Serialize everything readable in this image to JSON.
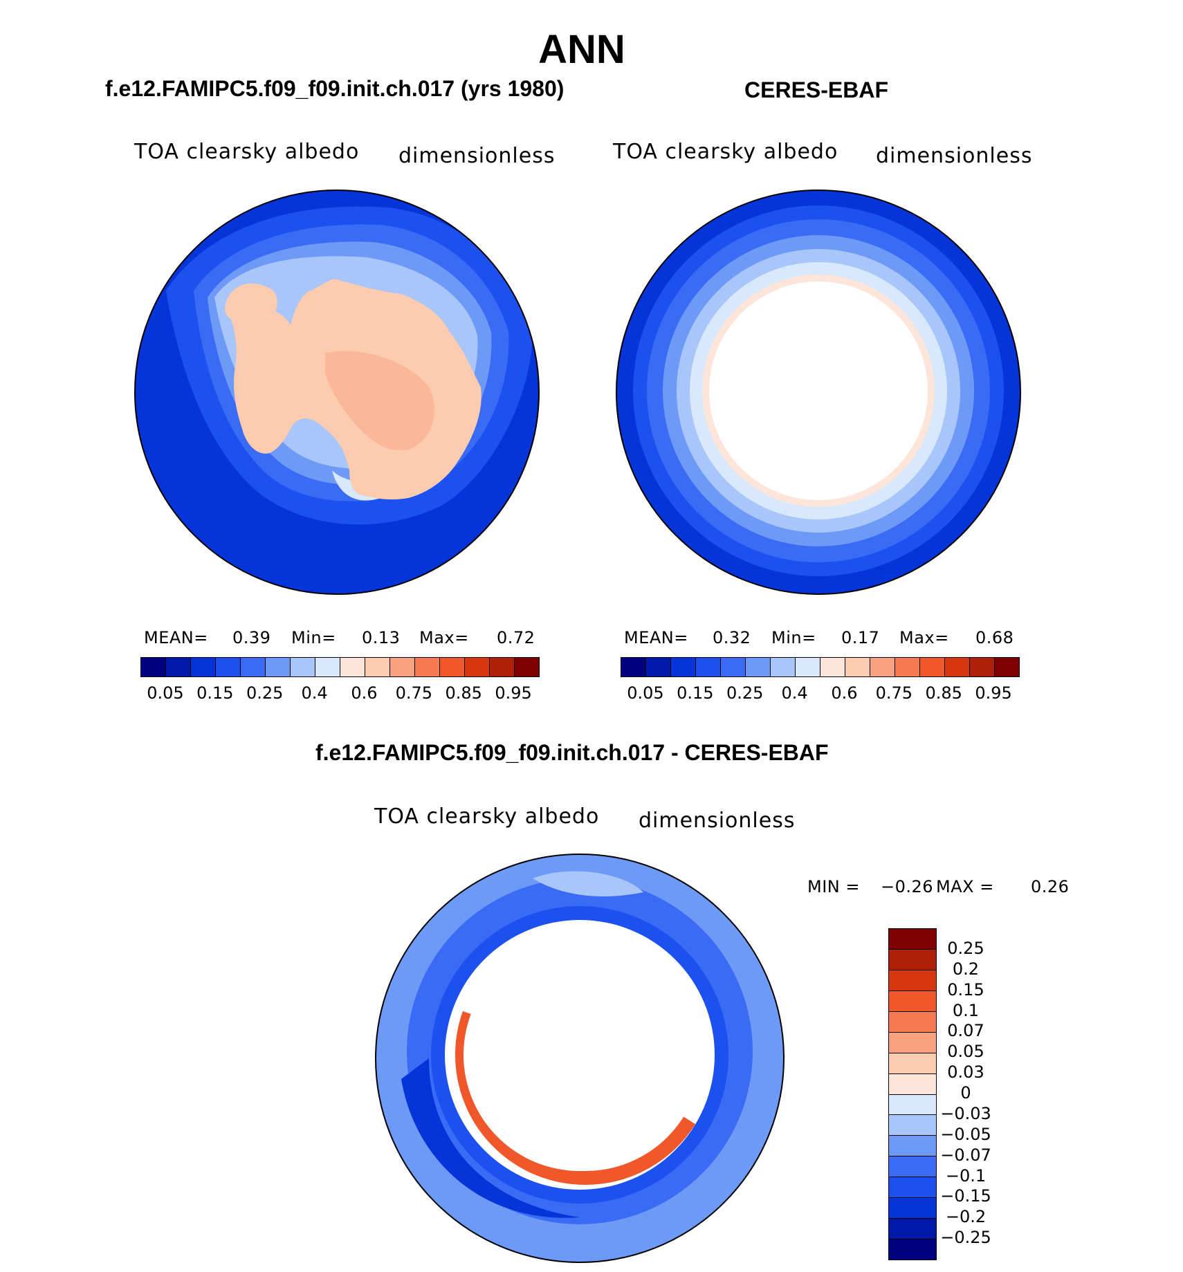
{
  "figure": {
    "title": "ANN"
  },
  "panels": [
    {
      "id": "model",
      "title": "f.e12.FAMIPC5.f09_f09.init.ch.017 (yrs 1980)",
      "variable": "TOA clearsky albedo",
      "units": "dimensionless",
      "stats": {
        "mean_label": "MEAN=",
        "mean": "0.39",
        "min_label": "Min=",
        "min": "0.13",
        "max_label": "Max=",
        "max": "0.72"
      }
    },
    {
      "id": "obs",
      "title": "CERES-EBAF",
      "variable": "TOA clearsky albedo",
      "units": "dimensionless",
      "stats": {
        "mean_label": "MEAN=",
        "mean": "0.32",
        "min_label": "Min=",
        "min": "0.17",
        "max_label": "Max=",
        "max": "0.68"
      }
    },
    {
      "id": "diff",
      "title": "f.e12.FAMIPC5.f09_f09.init.ch.017 - CERES-EBAF",
      "variable": "TOA clearsky albedo",
      "units": "dimensionless",
      "stats": {
        "min_label": "MIN =",
        "min": "−0.26",
        "max_label": "MAX =",
        "max": "0.26"
      }
    }
  ],
  "colorbar_abs": {
    "colors": [
      "#000080",
      "#0019a8",
      "#0534d8",
      "#1c51f0",
      "#3a6bf5",
      "#6d9af7",
      "#a9c6fa",
      "#d8e9fd",
      "#fde6d9",
      "#fccbb0",
      "#f9a27f",
      "#f67b50",
      "#f0572a",
      "#d93612",
      "#b01f08",
      "#7e0000"
    ],
    "tick_labels": [
      "0.05",
      "0.15",
      "0.25",
      "0.4",
      "0.6",
      "0.75",
      "0.85",
      "0.95"
    ]
  },
  "colorbar_diff": {
    "colors": [
      "#7e0000",
      "#b01f08",
      "#d93612",
      "#f0572a",
      "#f67b50",
      "#f9a27f",
      "#fccbb0",
      "#fde6d9",
      "#d8e9fd",
      "#a9c6fa",
      "#6d9af7",
      "#3a6bf5",
      "#1c51f0",
      "#0534d8",
      "#0019a8",
      "#000080"
    ],
    "tick_labels": [
      "0.25",
      "0.2",
      "0.15",
      "0.1",
      "0.07",
      "0.05",
      "0.03",
      "0",
      "−0.03",
      "−0.05",
      "−0.07",
      "−0.1",
      "−0.15",
      "−0.2",
      "−0.25"
    ]
  }
}
